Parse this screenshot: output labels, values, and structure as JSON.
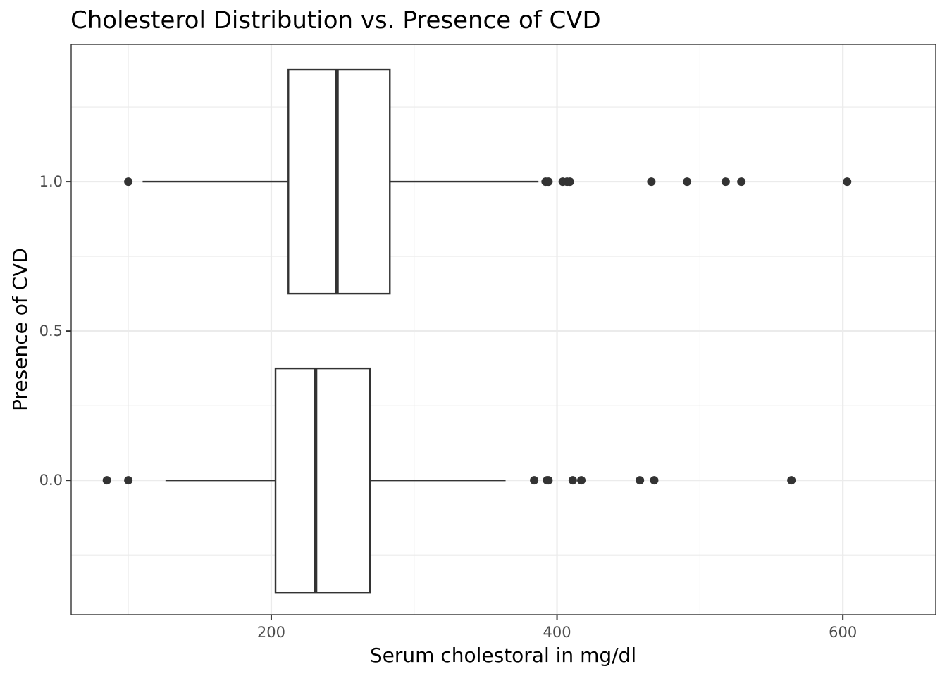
{
  "chart_data": {
    "type": "boxplot",
    "orientation": "horizontal",
    "title": "Cholesterol Distribution vs. Presence of CVD",
    "xlabel": "Serum cholestoral in mg/dl",
    "ylabel": "Presence of CVD",
    "xlim": [
      60,
      665
    ],
    "ylim": [
      -0.45,
      1.46
    ],
    "x_ticks": [
      200,
      400,
      600
    ],
    "x_tick_labels": [
      "200",
      "400",
      "600"
    ],
    "y_ticks": [
      0.0,
      0.5,
      1.0
    ],
    "y_tick_labels": [
      "0.0",
      "0.5",
      "1.0"
    ],
    "box_half_width": 0.375,
    "grid": true,
    "boxes": [
      {
        "y": 1.0,
        "whisker_low": 110,
        "q1": 212,
        "median": 246,
        "q3": 283,
        "whisker_high": 387,
        "outliers": [
          100,
          392,
          394,
          404,
          407,
          409,
          466,
          491,
          518,
          529,
          603
        ]
      },
      {
        "y": 0.0,
        "whisker_low": 126,
        "q1": 203,
        "median": 231,
        "q3": 269,
        "whisker_high": 364,
        "outliers": [
          85,
          100,
          384,
          393,
          394,
          411,
          417,
          458,
          468,
          564
        ]
      }
    ]
  }
}
